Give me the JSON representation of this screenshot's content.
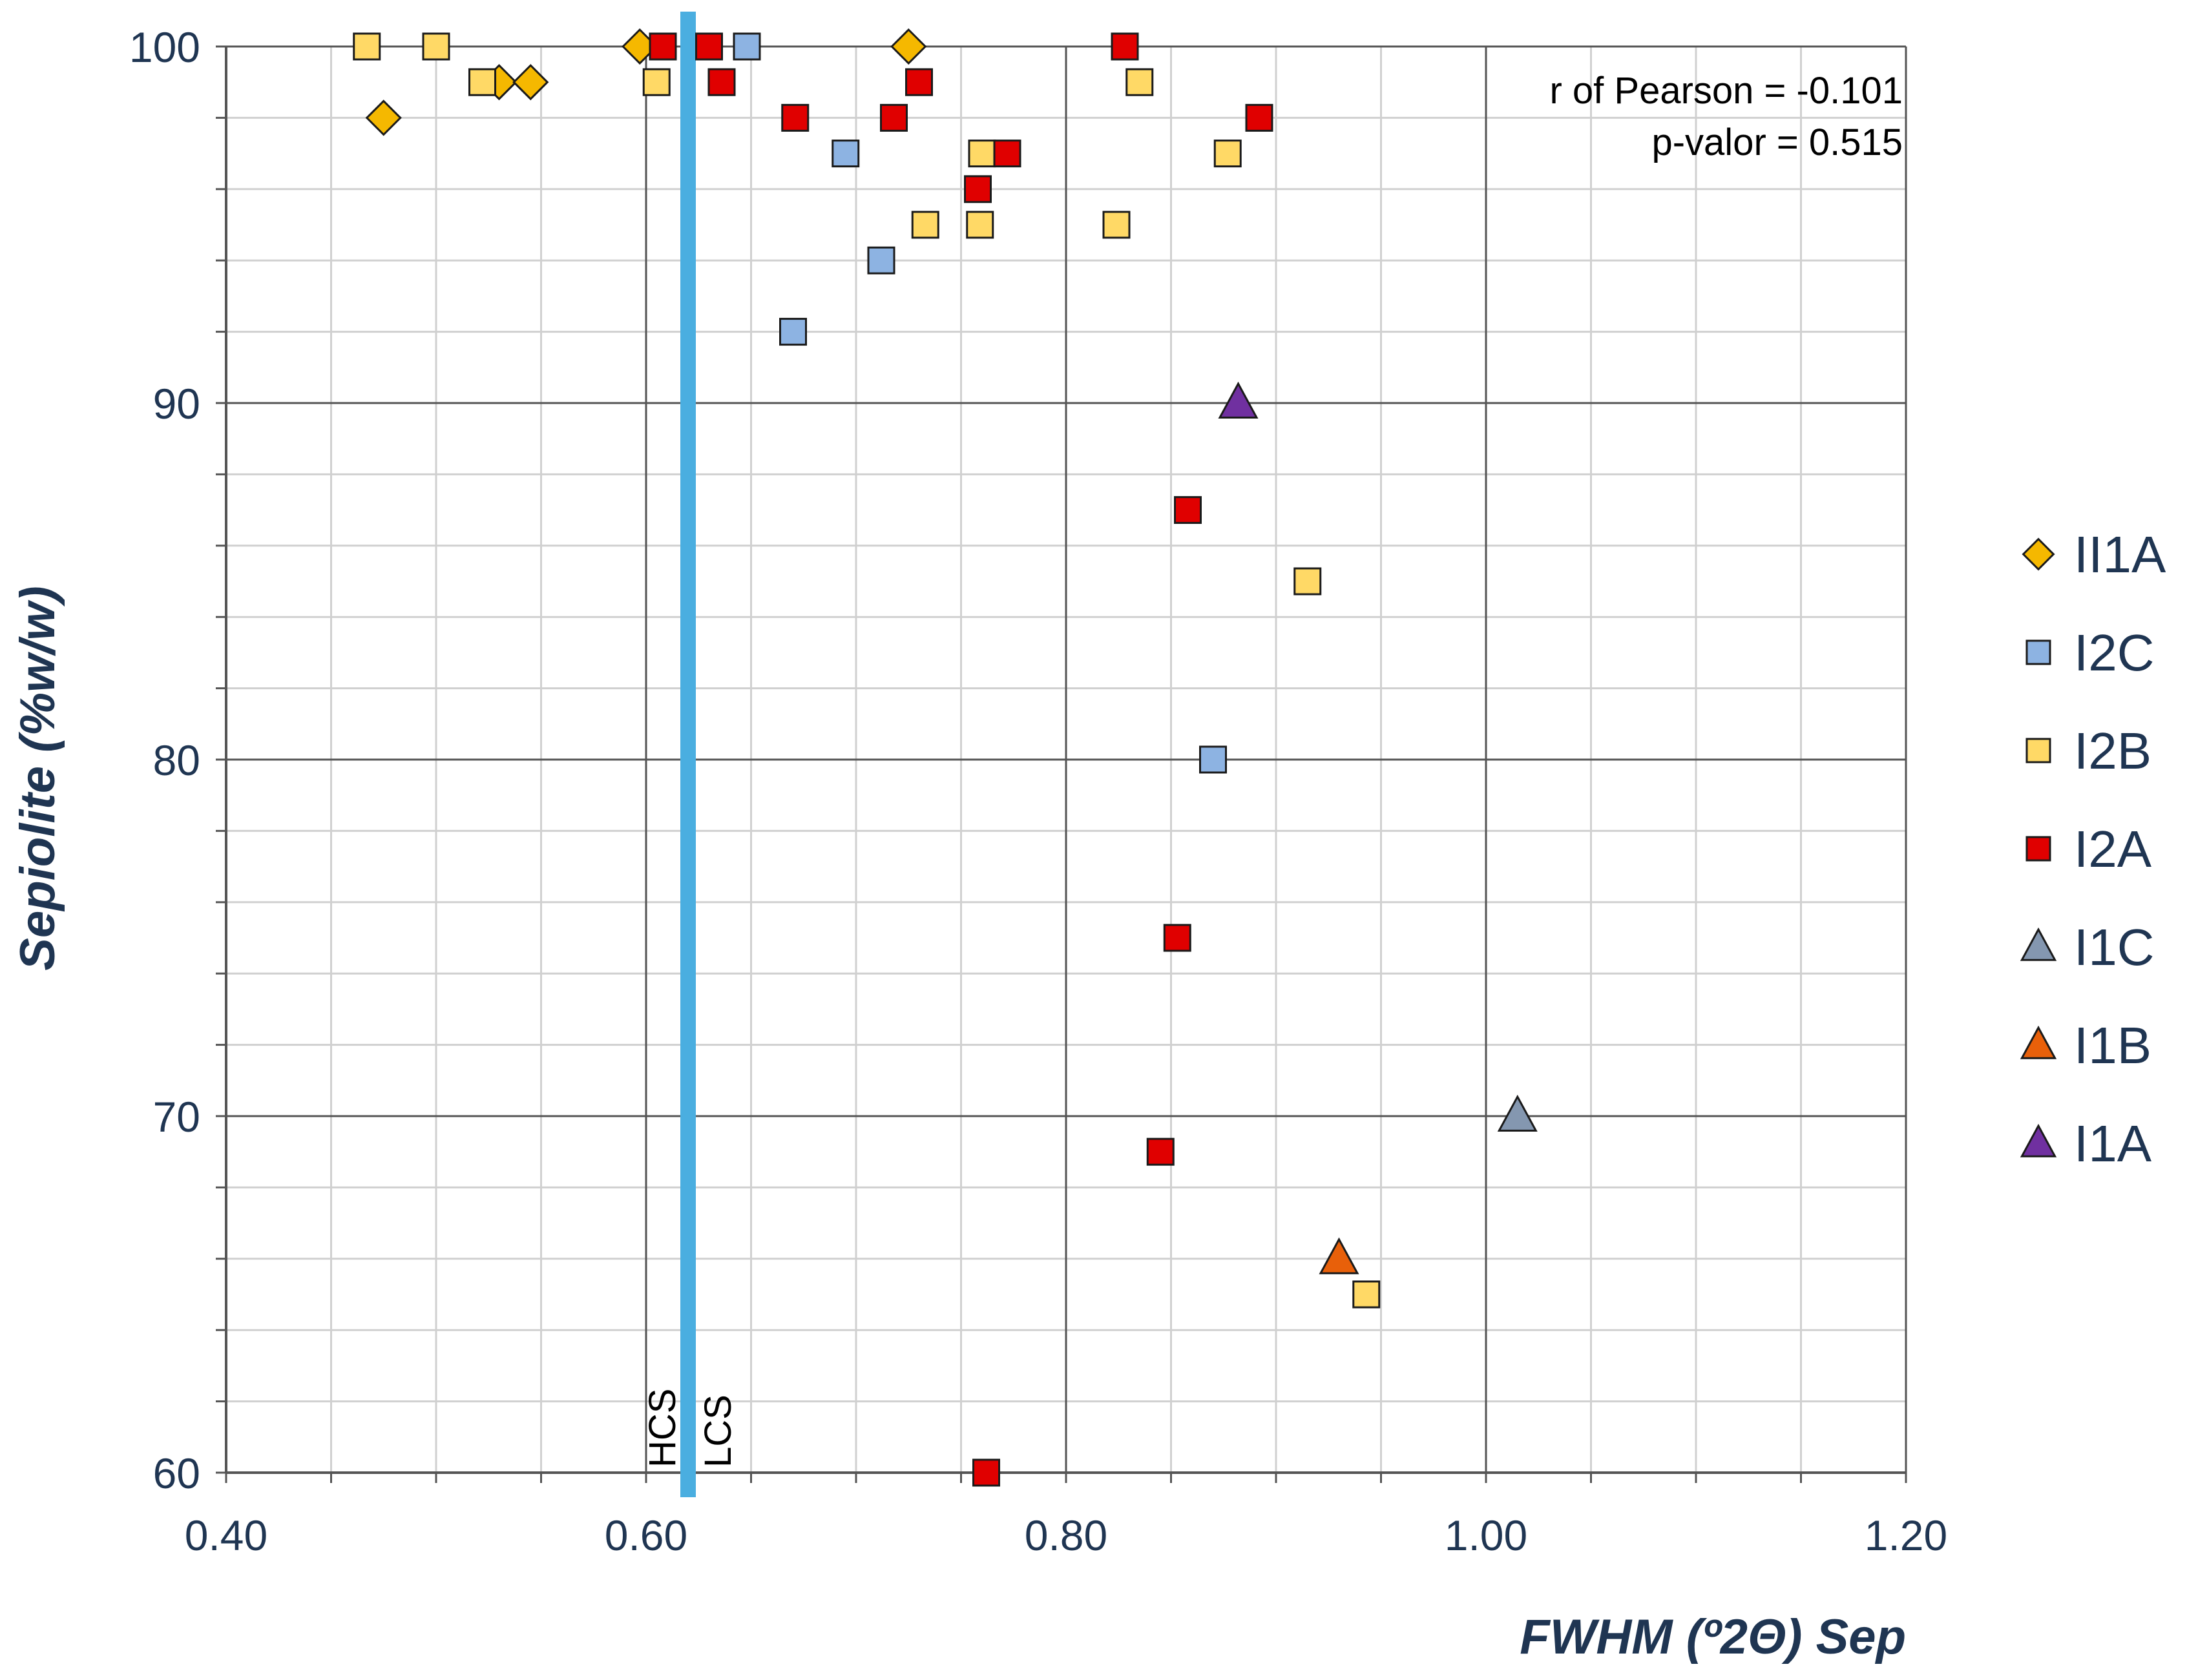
{
  "chart_data": {
    "type": "scatter",
    "title": "",
    "xlabel": "FWHM (º2Θ) Sep",
    "ylabel": "Sepiolite (%w/w)",
    "xlim": [
      0.4,
      1.2
    ],
    "ylim": [
      60,
      100
    ],
    "x_major_ticks": [
      0.4,
      0.6,
      0.8,
      1.0,
      1.2
    ],
    "x_tick_labels": [
      "0.40",
      "0.60",
      "0.80",
      "1.00",
      "1.20"
    ],
    "x_minor_step": 0.05,
    "y_major_ticks": [
      60,
      70,
      80,
      90,
      100
    ],
    "y_tick_labels": [
      "60",
      "70",
      "80",
      "90",
      "100"
    ],
    "y_minor_step": 2,
    "grid": true,
    "legend_position": "right",
    "annotation": {
      "line1": "r of Pearson = -0.101",
      "line2": "p-valor = 0.515"
    },
    "reference_line": {
      "x": 0.62,
      "color": "#4aaee0",
      "label_left": "HCS",
      "label_right": "LCS"
    },
    "series": [
      {
        "name": "II1A",
        "marker": "diamond",
        "color": "#f5b800",
        "points": [
          [
            0.475,
            98
          ],
          [
            0.53,
            99
          ],
          [
            0.545,
            99
          ],
          [
            0.597,
            100
          ],
          [
            0.725,
            100
          ]
        ]
      },
      {
        "name": "I2C",
        "marker": "square",
        "color": "#8db3e2",
        "points": [
          [
            0.648,
            100
          ],
          [
            0.695,
            97
          ],
          [
            0.712,
            94
          ],
          [
            0.67,
            92
          ],
          [
            0.87,
            80
          ]
        ]
      },
      {
        "name": "I2B",
        "marker": "square",
        "color": "#ffd966",
        "points": [
          [
            0.467,
            100
          ],
          [
            0.5,
            100
          ],
          [
            0.522,
            99
          ],
          [
            0.605,
            99
          ],
          [
            0.835,
            99
          ],
          [
            0.76,
            97
          ],
          [
            0.877,
            97
          ],
          [
            0.733,
            95
          ],
          [
            0.759,
            95
          ],
          [
            0.824,
            95
          ],
          [
            0.915,
            85
          ],
          [
            0.943,
            65
          ]
        ]
      },
      {
        "name": "I2A",
        "marker": "square",
        "color": "#e00000",
        "points": [
          [
            0.608,
            100
          ],
          [
            0.63,
            100
          ],
          [
            0.828,
            100
          ],
          [
            0.636,
            99
          ],
          [
            0.73,
            99
          ],
          [
            0.671,
            98
          ],
          [
            0.718,
            98
          ],
          [
            0.892,
            98
          ],
          [
            0.772,
            97
          ],
          [
            0.758,
            96
          ],
          [
            0.858,
            87
          ],
          [
            0.853,
            75
          ],
          [
            0.845,
            69
          ],
          [
            0.762,
            60
          ]
        ]
      },
      {
        "name": "I1C",
        "marker": "triangle",
        "color": "#8497b0",
        "points": [
          [
            1.015,
            70
          ]
        ]
      },
      {
        "name": "I1B",
        "marker": "triangle",
        "color": "#e8600a",
        "points": [
          [
            0.93,
            66
          ]
        ]
      },
      {
        "name": "I1A",
        "marker": "triangle",
        "color": "#7030a0",
        "points": [
          [
            0.882,
            90
          ]
        ]
      }
    ]
  }
}
